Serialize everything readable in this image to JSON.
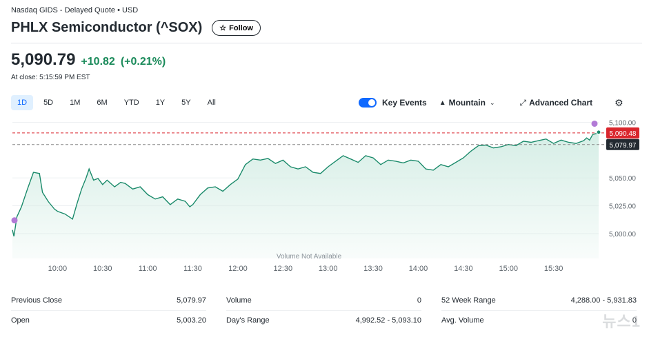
{
  "header": {
    "source": "Nasdaq GIDS - Delayed Quote • USD",
    "title": "PHLX Semiconductor (^SOX)",
    "follow_label": "Follow"
  },
  "quote": {
    "price": "5,090.79",
    "change": "+10.82",
    "change_pct": "(+0.21%)",
    "close_time": "At close: 5:15:59 PM EST"
  },
  "ranges": [
    "1D",
    "5D",
    "1M",
    "6M",
    "YTD",
    "1Y",
    "5Y",
    "All"
  ],
  "active_range": "1D",
  "controls": {
    "key_events": "Key Events",
    "key_events_on": true,
    "chart_type": "Mountain",
    "advanced_chart": "Advanced Chart"
  },
  "chart_data": {
    "type": "area",
    "x": [
      "09:30",
      "09:31",
      "09:33",
      "09:36",
      "09:40",
      "09:44",
      "09:48",
      "09:50",
      "09:54",
      "09:58",
      "10:00",
      "10:05",
      "10:10",
      "10:13",
      "10:16",
      "10:19",
      "10:21",
      "10:24",
      "10:27",
      "10:30",
      "10:33",
      "10:38",
      "10:42",
      "10:45",
      "10:50",
      "10:55",
      "11:00",
      "11:05",
      "11:10",
      "11:15",
      "11:20",
      "11:25",
      "11:28",
      "11:30",
      "11:35",
      "11:40",
      "11:45",
      "11:50",
      "11:55",
      "12:00",
      "12:05",
      "12:10",
      "12:15",
      "12:20",
      "12:25",
      "12:30",
      "12:35",
      "12:40",
      "12:45",
      "12:50",
      "12:55",
      "13:00",
      "13:05",
      "13:10",
      "13:15",
      "13:20",
      "13:25",
      "13:30",
      "13:35",
      "13:40",
      "13:45",
      "13:50",
      "13:55",
      "14:00",
      "14:05",
      "14:10",
      "14:15",
      "14:20",
      "14:25",
      "14:30",
      "14:35",
      "14:40",
      "14:45",
      "14:50",
      "14:55",
      "15:00",
      "15:05",
      "15:10",
      "15:15",
      "15:20",
      "15:25",
      "15:30",
      "15:35",
      "15:40",
      "15:45",
      "15:50",
      "15:52",
      "15:54",
      "15:56",
      "16:00"
    ],
    "values": [
      5003.2,
      4997.5,
      5015.0,
      5024.0,
      5040.0,
      5055.0,
      5054.0,
      5037.0,
      5028.5,
      5022.0,
      5020.0,
      5017.5,
      5013.0,
      5027.0,
      5040.0,
      5050.0,
      5058.0,
      5048.0,
      5049.5,
      5044.0,
      5048.0,
      5042.0,
      5046.0,
      5045.0,
      5040.0,
      5042.0,
      5035.0,
      5031.0,
      5033.0,
      5026.0,
      5031.0,
      5029.0,
      5024.0,
      5026.0,
      5035.0,
      5041.0,
      5042.0,
      5038.0,
      5044.0,
      5049.0,
      5062.0,
      5067.0,
      5066.0,
      5067.5,
      5063.0,
      5066.0,
      5060.0,
      5058.0,
      5060.0,
      5055.0,
      5054.0,
      5060.0,
      5065.0,
      5070.0,
      5067.0,
      5064.0,
      5070.0,
      5068.0,
      5062.0,
      5066.0,
      5065.0,
      5063.5,
      5066.0,
      5065.0,
      5058.0,
      5057.0,
      5062.0,
      5060.0,
      5064.0,
      5068.0,
      5074.0,
      5079.0,
      5079.5,
      5077.0,
      5078.0,
      5080.0,
      5079.0,
      5083.0,
      5082.0,
      5083.5,
      5085.0,
      5081.0,
      5084.0,
      5082.0,
      5081.0,
      5083.5,
      5086.0,
      5084.0,
      5089.0,
      5090.48
    ],
    "prev_close": 5079.97,
    "last": 5090.48,
    "prev_close_label": "5,079.97",
    "last_label": "5,090.48",
    "ylim": [
      4990,
      5104
    ],
    "y_ticks": [
      {
        "value": 5000,
        "label": "5,000.00"
      },
      {
        "value": 5025,
        "label": "5,025.00"
      },
      {
        "value": 5050,
        "label": "5,050.00"
      },
      {
        "value": 5100,
        "label": "5,100.00"
      }
    ],
    "x_ticks": [
      "10:00",
      "10:30",
      "11:00",
      "11:30",
      "12:00",
      "12:30",
      "13:00",
      "13:30",
      "14:00",
      "14:30",
      "15:00",
      "15:30"
    ],
    "volume_note": "Volume Not Available",
    "grid": true,
    "colors": {
      "line": "#1a8a6a",
      "fill": "#d6eee6",
      "prev_close_line": "#888888",
      "last_line": "#d9252c",
      "last_label_bg": "#d9252c",
      "prev_label_bg": "#232a31",
      "event_dot": "#b27ad6"
    }
  },
  "stats": [
    {
      "label": "Previous Close",
      "value": "5,079.97"
    },
    {
      "label": "Open",
      "value": "5,003.20"
    },
    {
      "label": "Volume",
      "value": "0"
    },
    {
      "label": "Day's Range",
      "value": "4,992.52 - 5,093.10"
    },
    {
      "label": "52 Week Range",
      "value": "4,288.00 - 5,931.83"
    },
    {
      "label": "Avg. Volume",
      "value": "0"
    }
  ],
  "watermark": "뉴스1"
}
